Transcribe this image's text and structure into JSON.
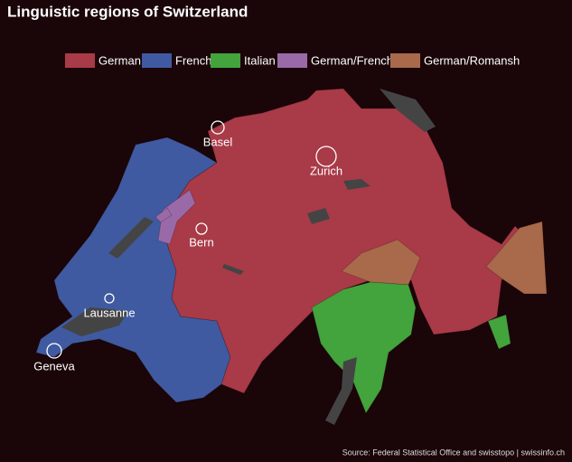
{
  "title": "Linguistic regions of Switzerland",
  "legend": [
    {
      "name": "German",
      "color": "#a93a48"
    },
    {
      "name": "French",
      "color": "#3f5aa0"
    },
    {
      "name": "Italian",
      "color": "#43a33c"
    },
    {
      "name": "German/French",
      "color": "#9a6aa8"
    },
    {
      "name": "German/Romansh",
      "color": "#a86a4a"
    }
  ],
  "cities": [
    {
      "label": "Basel"
    },
    {
      "label": "Zurich"
    },
    {
      "label": "Bern"
    },
    {
      "label": "Lausanne"
    },
    {
      "label": "Geneva"
    }
  ],
  "source": "Source: Federal Statistical Office and swisstopo | swissinfo.ch"
}
